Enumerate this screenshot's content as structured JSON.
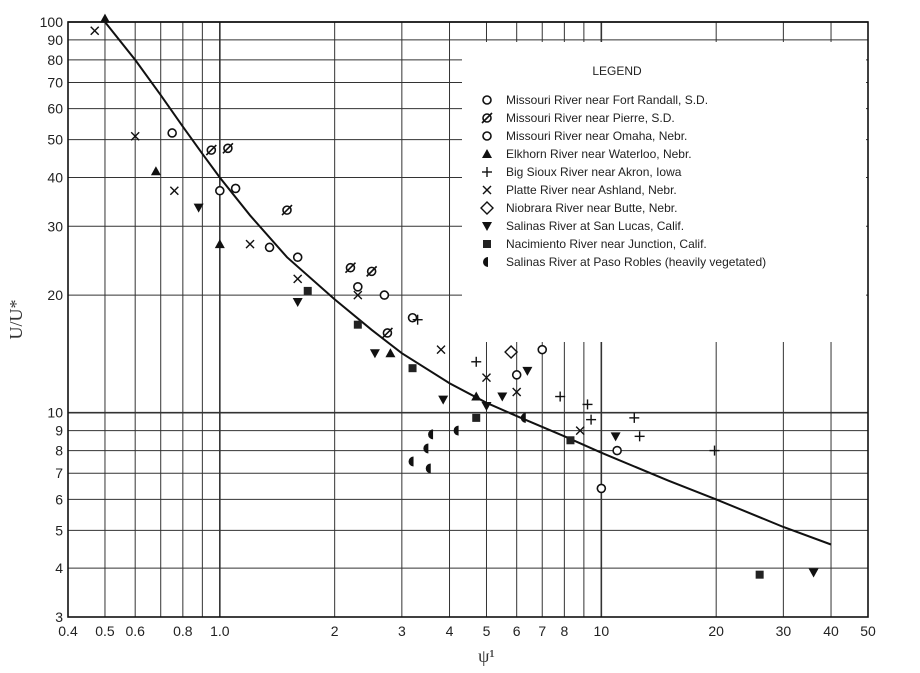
{
  "chart_data": {
    "type": "scatter",
    "title": "",
    "xlabel": "ψ¹",
    "ylabel": "U/U*",
    "xscale": "log",
    "yscale": "log",
    "xlim": [
      0.4,
      50
    ],
    "ylim": [
      3,
      100
    ],
    "grid": true,
    "legend_placement": "top-right",
    "x_tick_labels": [
      {
        "v": 0.4,
        "t": "0.4"
      },
      {
        "v": 0.5,
        "t": "0.5"
      },
      {
        "v": 0.6,
        "t": "0.6"
      },
      {
        "v": 0.8,
        "t": "0.8"
      },
      {
        "v": 1,
        "t": "1.0"
      },
      {
        "v": 2,
        "t": "2"
      },
      {
        "v": 3,
        "t": "3"
      },
      {
        "v": 4,
        "t": "4"
      },
      {
        "v": 5,
        "t": "5"
      },
      {
        "v": 6,
        "t": "6"
      },
      {
        "v": 7,
        "t": "7"
      },
      {
        "v": 8,
        "t": "8"
      },
      {
        "v": 10,
        "t": "10"
      },
      {
        "v": 20,
        "t": "20"
      },
      {
        "v": 30,
        "t": "30"
      },
      {
        "v": 40,
        "t": "40"
      },
      {
        "v": 50,
        "t": "50"
      }
    ],
    "y_tick_labels": [
      {
        "v": 3,
        "t": "3"
      },
      {
        "v": 4,
        "t": "4"
      },
      {
        "v": 5,
        "t": "5"
      },
      {
        "v": 6,
        "t": "6"
      },
      {
        "v": 7,
        "t": "7"
      },
      {
        "v": 8,
        "t": "8"
      },
      {
        "v": 9,
        "t": "9"
      },
      {
        "v": 10,
        "t": "10"
      },
      {
        "v": 20,
        "t": "20"
      },
      {
        "v": 30,
        "t": "30"
      },
      {
        "v": 40,
        "t": "40"
      },
      {
        "v": 50,
        "t": "50"
      },
      {
        "v": 60,
        "t": "60"
      },
      {
        "v": 70,
        "t": "70"
      },
      {
        "v": 80,
        "t": "80"
      },
      {
        "v": 90,
        "t": "90"
      },
      {
        "v": 100,
        "t": "100"
      }
    ],
    "legend_title": "LEGEND",
    "series": [
      {
        "name": "Missouri River near Fort Randall, S.D.",
        "marker": "circle",
        "points": [
          [
            0.75,
            52
          ],
          [
            1.0,
            37
          ],
          [
            1.1,
            37.5
          ],
          [
            1.6,
            25
          ],
          [
            2.3,
            21
          ],
          [
            2.7,
            20
          ],
          [
            3.2,
            17.5
          ],
          [
            6.0,
            12.5
          ],
          [
            11,
            8
          ],
          [
            10,
            6.4
          ]
        ]
      },
      {
        "name": "Missouri River near Pierre, S.D.",
        "marker": "slashed-circle",
        "points": [
          [
            0.95,
            47
          ],
          [
            1.05,
            47.5
          ],
          [
            1.5,
            33
          ],
          [
            2.2,
            23.5
          ],
          [
            2.5,
            23
          ],
          [
            2.75,
            16
          ]
        ]
      },
      {
        "name": "Missouri River near Omaha, Nebr.",
        "marker": "circle",
        "points": [
          [
            1.35,
            26.5
          ],
          [
            7.0,
            14.5
          ]
        ]
      },
      {
        "name": "Elkhorn River near Waterloo, Nebr.",
        "marker": "triangle-up",
        "points": [
          [
            0.5,
            102
          ],
          [
            0.68,
            41.5
          ],
          [
            1.0,
            27
          ],
          [
            2.8,
            14.2
          ],
          [
            4.7,
            11
          ]
        ]
      },
      {
        "name": "Big Sioux River near Akron, Iowa",
        "marker": "plus",
        "points": [
          [
            3.3,
            17.3
          ],
          [
            4.7,
            13.5
          ],
          [
            7.8,
            11
          ],
          [
            9.2,
            10.5
          ],
          [
            9.4,
            9.6
          ],
          [
            12.2,
            9.7
          ],
          [
            12.6,
            8.7
          ],
          [
            19.8,
            8
          ]
        ]
      },
      {
        "name": "Platte River near Ashland, Nebr.",
        "marker": "x",
        "points": [
          [
            0.47,
            95
          ],
          [
            0.6,
            51
          ],
          [
            0.76,
            37
          ],
          [
            1.2,
            27
          ],
          [
            1.6,
            22
          ],
          [
            2.3,
            20
          ],
          [
            3.8,
            14.5
          ],
          [
            5.0,
            12.3
          ],
          [
            8.8,
            9
          ],
          [
            6.0,
            11.3
          ]
        ]
      },
      {
        "name": "Niobrara River near Butte, Nebr.",
        "marker": "diamond",
        "points": [
          [
            5.8,
            14.3
          ]
        ]
      },
      {
        "name": "Salinas River at San Lucas, Calif.",
        "marker": "triangle-down",
        "points": [
          [
            0.88,
            33.5
          ],
          [
            1.6,
            19.2
          ],
          [
            2.55,
            14.2
          ],
          [
            3.85,
            10.8
          ],
          [
            5.0,
            10.4
          ],
          [
            5.5,
            11
          ],
          [
            6.4,
            12.8
          ],
          [
            10.9,
            8.7
          ],
          [
            36,
            3.9
          ]
        ]
      },
      {
        "name": "Nacimiento River near Junction, Calif.",
        "marker": "square",
        "points": [
          [
            1.7,
            20.5
          ],
          [
            2.3,
            16.8
          ],
          [
            3.2,
            13
          ],
          [
            4.7,
            9.7
          ],
          [
            8.3,
            8.5
          ],
          [
            26,
            3.85
          ]
        ]
      },
      {
        "name": "Salinas River at Paso Robles (heavily vegetated)",
        "marker": "half-circle",
        "points": [
          [
            3.2,
            7.5
          ],
          [
            3.5,
            8.1
          ],
          [
            3.55,
            7.2
          ],
          [
            3.6,
            8.8
          ],
          [
            4.2,
            9
          ],
          [
            6.3,
            9.7
          ]
        ]
      }
    ],
    "curve": {
      "x": [
        0.5,
        0.6,
        0.7,
        0.8,
        0.9,
        1.0,
        1.2,
        1.5,
        2,
        2.5,
        3,
        4,
        5,
        6,
        8,
        10,
        15,
        20,
        30,
        40
      ],
      "y": [
        100,
        80,
        65,
        54,
        46,
        40,
        32,
        25,
        19.5,
        16.3,
        14.2,
        11.9,
        10.6,
        9.8,
        8.7,
        7.9,
        6.7,
        6.0,
        5.1,
        4.6
      ]
    }
  }
}
